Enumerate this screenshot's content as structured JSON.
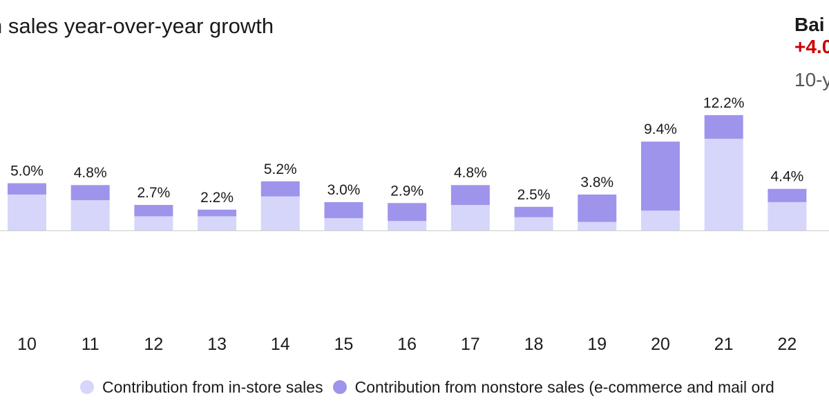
{
  "header": {
    "title": "n sales year-over-year growth",
    "side_name": "Bai",
    "side_value": "+4.0",
    "side_sub": "10-y"
  },
  "colors": {
    "instore": "#d6d6fb",
    "nonstore": "#9e94ec",
    "axis": "#cccccc",
    "text": "#1a1a1a",
    "highlight": "#cc0000"
  },
  "chart_data": {
    "type": "bar",
    "stacked": true,
    "categories": [
      "10",
      "11",
      "12",
      "13",
      "14",
      "15",
      "16",
      "17",
      "18",
      "19",
      "20",
      "21",
      "22"
    ],
    "series": [
      {
        "name": "Contribution from in-store sales",
        "values": [
          3.8,
          3.2,
          1.5,
          1.5,
          3.6,
          1.3,
          1.0,
          2.7,
          1.4,
          0.9,
          2.1,
          9.7,
          3.0
        ]
      },
      {
        "name": "Contribution from nonstore sales (e-commerce and mail ord",
        "values": [
          1.2,
          1.6,
          1.2,
          0.7,
          1.6,
          1.7,
          1.9,
          2.1,
          1.1,
          2.9,
          7.3,
          2.5,
          1.4
        ]
      }
    ],
    "totals": [
      5.0,
      4.8,
      2.7,
      2.2,
      5.2,
      3.0,
      2.9,
      4.8,
      2.5,
      3.8,
      9.4,
      12.2,
      4.4
    ],
    "total_labels": [
      "5.0%",
      "4.8%",
      "2.7%",
      "2.2%",
      "5.2%",
      "3.0%",
      "2.9%",
      "4.8%",
      "2.5%",
      "3.8%",
      "9.4%",
      "12.2%",
      "4.4%"
    ],
    "legend_position": "bottom",
    "grid": false
  },
  "legend": {
    "instore_label": "Contribution from in-store sales",
    "nonstore_label": "Contribution from nonstore sales (e-commerce and mail ord"
  }
}
